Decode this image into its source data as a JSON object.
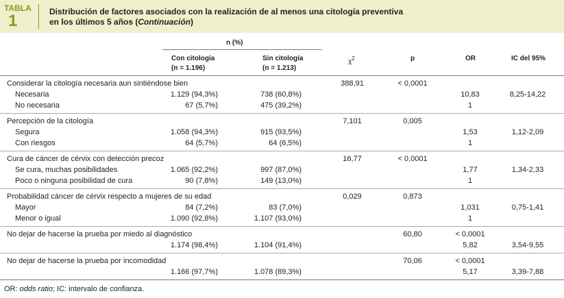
{
  "header": {
    "label": "TABLA",
    "number": "1",
    "title_line1": "Distribución de factores asociados con la realización de al menos una citología preventiva",
    "title_line2": "en los últimos 5 años (",
    "title_italic": "Continuación",
    "title_end": ")"
  },
  "columns": {
    "group": "n (%)",
    "con": "Con citología",
    "con_n": "(n = 1.196)",
    "sin": "Sin citología",
    "sin_n": "(n = 1.213)",
    "chi": "χ",
    "chi_sup": "2",
    "p": "p",
    "or": "OR",
    "ic": "IC del 95%"
  },
  "table": {
    "groups": [
      {
        "rows": [
          [
            "Considerar la citología necesaria aun sintiéndose bien",
            null,
            null,
            "388,91",
            "< 0,0001",
            null,
            null
          ],
          [
            "Necesaria",
            "1.129 (94,3%)",
            "738 (60,8%)",
            null,
            null,
            "10,83",
            "8,25-14,22"
          ],
          [
            "No necesaria",
            "67 (5,7%)",
            "475 (39,2%)",
            null,
            null,
            "1",
            null
          ]
        ]
      },
      {
        "rows": [
          [
            "Percepción de la citología",
            null,
            null,
            "7,101",
            "0,005",
            null,
            null
          ],
          [
            "Segura",
            "1.058 (94,3%)",
            "915 (93,5%)",
            null,
            null,
            "1,53",
            "1,12-2,09"
          ],
          [
            "Con riesgos",
            "64 (5,7%)",
            "64 (6,5%)",
            null,
            null,
            "1",
            null
          ]
        ]
      },
      {
        "rows": [
          [
            "Cura de cáncer de cérvix con detección precoz",
            null,
            null,
            "16,77",
            "< 0,0001",
            null,
            null
          ],
          [
            "Se cura, muchas posibilidades",
            "1.065 (92,2%)",
            "997 (87,0%)",
            null,
            null,
            "1,77",
            "1,34-2,33"
          ],
          [
            "Poco o ninguna posibilidad de cura",
            "90 (7,8%)",
            "149 (13,0%)",
            null,
            null,
            "1",
            null
          ]
        ]
      },
      {
        "rows": [
          [
            "Probabilidad cáncer de cérvix respecto a mujeres de su edad",
            null,
            null,
            "0,029",
            "0,873",
            null,
            null
          ],
          [
            "Mayor",
            "84 (7,2%)",
            "83 (7,0%)",
            null,
            null,
            "1,031",
            "0,75-1,41"
          ],
          [
            "Menor o igual",
            "1.090 (92,8%)",
            "1.107 (93,0%)",
            null,
            null,
            "1",
            null
          ]
        ]
      },
      {
        "rows": [
          [
            "No dejar de hacerse la prueba por miedo al diagnóstico",
            null,
            null,
            null,
            "60,80",
            "< 0,0001",
            null
          ],
          [
            null,
            "1.174 (98,4%)",
            "1.104 (91,4%)",
            null,
            null,
            "5,82",
            "3,54-9,55"
          ]
        ]
      },
      {
        "rows": [
          [
            "No dejar de hacerse la prueba por incomodidad",
            null,
            null,
            null,
            "70,06",
            "< 0,0001",
            null
          ],
          [
            null,
            "1.166 (97,7%)",
            "1.078 (89,3%)",
            null,
            null,
            "5,17",
            "3,39-7,88"
          ]
        ]
      }
    ]
  },
  "footer": {
    "prefix": "OR: ",
    "italic": "odds ratio",
    "suffix": "; IC: intervalo de confianza."
  }
}
